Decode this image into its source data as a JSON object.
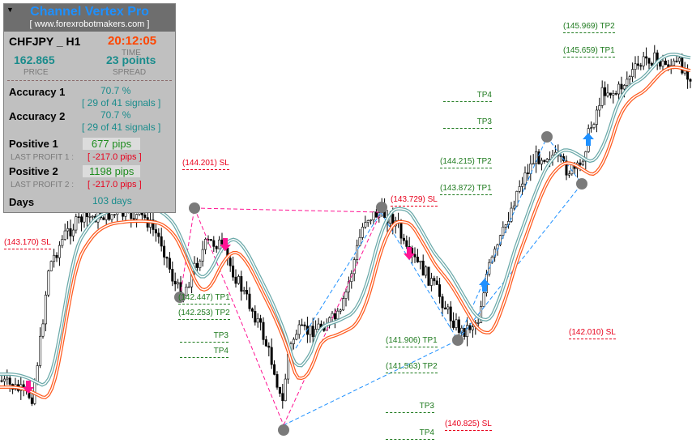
{
  "panel": {
    "title": "Channel Vertex Pro",
    "url": "[ www.forexrobotmakers.com ]",
    "symbol": "CHFJPY _ H1",
    "time": "20:12:05",
    "time_label": "TIME",
    "price": "162.865",
    "price_label": "PRICE",
    "spread": "23 points",
    "spread_label": "SPREAD",
    "accuracy1_label": "Accuracy 1",
    "accuracy1": "70.7 %",
    "accuracy1_signals": "[ 29 of 41 signals ]",
    "accuracy2_label": "Accuracy 2",
    "accuracy2": "70.7 %",
    "accuracy2_signals": "[ 29 of 41 signals ]",
    "positive1_label": "Positive 1",
    "positive1": "677 pips",
    "last_profit1_label": "LAST PROFIT 1 :",
    "last_profit1": "[ -217.0 pips ]",
    "positive2_label": "Positive 2",
    "positive2": "1198 pips",
    "last_profit2_label": "LAST PROFIT 2 :",
    "last_profit2": "[ -217.0 pips ]",
    "days_label": "Days",
    "days": "103 days"
  },
  "levels": [
    {
      "text": "(144.201) SL",
      "type": "sl"
    },
    {
      "text": "(143.170) SL",
      "type": "sl"
    },
    {
      "text": "(143.729) SL",
      "type": "sl"
    },
    {
      "text": "(142.447) TP1",
      "type": "tp"
    },
    {
      "text": "(142.253) TP2",
      "type": "tp"
    },
    {
      "text": "TP3",
      "type": "tp"
    },
    {
      "text": "TP4",
      "type": "tp"
    },
    {
      "text": "(141.906) TP1",
      "type": "tp"
    },
    {
      "text": "(141.563) TP2",
      "type": "tp"
    },
    {
      "text": "TP3",
      "type": "tp"
    },
    {
      "text": "TP4",
      "type": "tp"
    },
    {
      "text": "(140.825) SL",
      "type": "sl"
    },
    {
      "text": "TP4",
      "type": "tp"
    },
    {
      "text": "TP3",
      "type": "tp"
    },
    {
      "text": "(144.215) TP2",
      "type": "tp"
    },
    {
      "text": "(143.872) TP1",
      "type": "tp"
    },
    {
      "text": "(145.969) TP2",
      "type": "tp"
    },
    {
      "text": "(145.659) TP1",
      "type": "tp"
    },
    {
      "text": "(142.010) SL",
      "type": "sl"
    }
  ],
  "colors": {
    "ma_upper": "#6aa9a9",
    "ma_lower": "#ff5a1e",
    "sell_arrow": "#ff1493",
    "buy_arrow": "#1e90ff",
    "marker": "#7a7a7a"
  }
}
